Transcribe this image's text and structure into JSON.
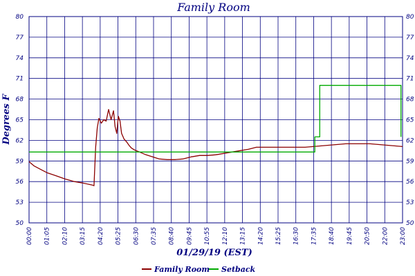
{
  "chart_data": {
    "type": "line",
    "title": "Family Room",
    "ylabel": "Degrees F",
    "xlabel": "01/29/19 (EST)",
    "ylim": [
      50,
      80
    ],
    "y_ticks": [
      50,
      53,
      56,
      59,
      62,
      65,
      68,
      71,
      74,
      77,
      80
    ],
    "y_tick_labels": [
      "50",
      "53",
      "56",
      "59",
      "62",
      "65",
      "68",
      "71",
      "74",
      "77",
      "80"
    ],
    "x_tick_labels": [
      "00:00",
      "01:05",
      "02:10",
      "03:15",
      "04:20",
      "05:25",
      "06:30",
      "07:35",
      "08:40",
      "09:45",
      "10:55",
      "12:10",
      "13:15",
      "14:20",
      "15:25",
      "16:30",
      "17:35",
      "18:40",
      "19:45",
      "20:50",
      "22:00",
      "23:00"
    ],
    "x_unit": "hours",
    "xlim": [
      0,
      23
    ],
    "grid": true,
    "legend_placement": "bottom-center",
    "series": [
      {
        "name": "Family Room",
        "color": "#8b0000",
        "x": [
          0.0,
          0.3,
          0.7,
          1.1,
          1.6,
          2.2,
          2.8,
          3.3,
          3.9,
          4.0,
          4.1,
          4.2,
          4.3,
          4.45,
          4.6,
          4.75,
          4.9,
          5.05,
          5.2,
          5.3,
          5.4,
          5.5,
          5.6,
          5.7,
          5.85,
          6.0,
          6.15,
          6.3,
          6.5,
          6.8,
          7.2,
          7.6,
          8.0,
          8.5,
          9.0,
          9.5,
          10.0,
          10.5,
          11.0,
          11.5,
          12.0,
          12.5,
          13.0,
          13.5,
          14.0,
          14.5,
          15.0,
          15.5,
          16.0,
          16.5,
          17.0,
          17.5,
          18.0,
          18.5,
          19.0,
          19.5,
          20.0,
          20.5,
          21.0,
          21.5,
          22.0,
          22.5,
          23.0
        ],
        "y": [
          58.9,
          58.3,
          57.8,
          57.3,
          56.9,
          56.4,
          56.0,
          55.8,
          55.5,
          55.4,
          61.0,
          63.8,
          65.2,
          64.5,
          65.0,
          64.8,
          66.5,
          65.0,
          66.3,
          64.0,
          63.0,
          65.5,
          64.8,
          63.0,
          62.2,
          61.8,
          61.3,
          60.9,
          60.6,
          60.3,
          59.9,
          59.6,
          59.3,
          59.2,
          59.2,
          59.3,
          59.6,
          59.8,
          59.8,
          59.9,
          60.1,
          60.3,
          60.5,
          60.7,
          61.0,
          61.0,
          61.0,
          61.0,
          61.0,
          61.0,
          61.0,
          61.1,
          61.2,
          61.3,
          61.4,
          61.5,
          61.5,
          61.5,
          61.5,
          61.4,
          61.3,
          61.2,
          61.1
        ]
      },
      {
        "name": "Setback",
        "color": "#00aa00",
        "x": [
          0.0,
          17.6,
          17.6,
          17.9,
          17.9,
          22.9,
          22.9
        ],
        "y": [
          60.3,
          60.3,
          62.5,
          62.5,
          70.0,
          70.0,
          62.5
        ]
      }
    ]
  }
}
